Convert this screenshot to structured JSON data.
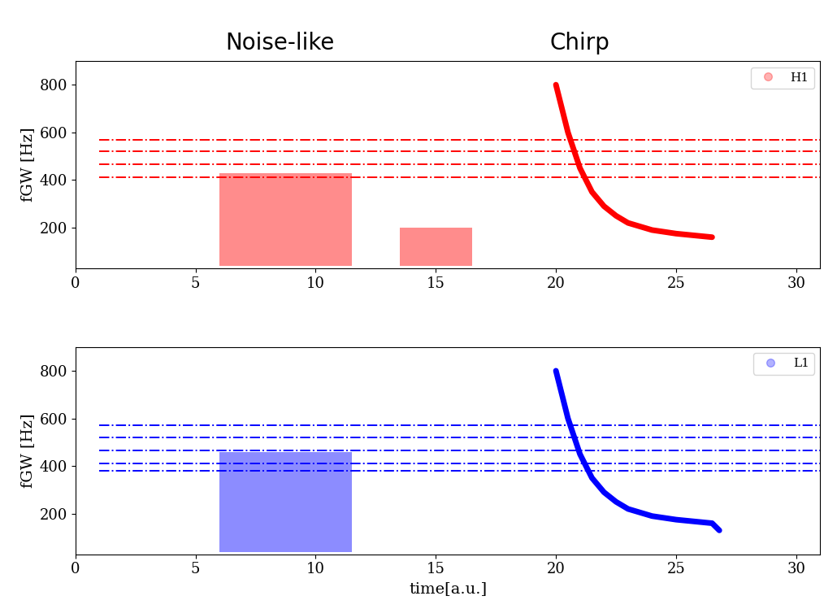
{
  "chart_data": [
    {
      "type": "line",
      "y_label": "fGW [Hz]",
      "annotations": [
        {
          "text": "Noise-like",
          "x": 8.5
        },
        {
          "text": "Chirp",
          "x": 21.0
        }
      ],
      "xlim": [
        0,
        31
      ],
      "xticks": [
        0,
        5,
        10,
        15,
        20,
        25,
        30
      ],
      "ylim": [
        30,
        900
      ],
      "yticks": [
        200,
        400,
        600,
        800
      ],
      "legend": "upper right",
      "series": [
        {
          "type": "area",
          "color": "#ff0000",
          "x": [
            6,
            11.5
          ],
          "values": [
            430,
            430
          ],
          "low": [
            40,
            40
          ]
        },
        {
          "type": "area",
          "color": "#ff0000",
          "x": [
            13.5,
            16.5
          ],
          "values": [
            200,
            200
          ],
          "low": [
            40,
            40
          ]
        },
        {
          "type": "line",
          "line_style": "dashdot",
          "color": "#ff0000",
          "x": [
            1,
            31
          ],
          "values": [
            570,
            570
          ]
        },
        {
          "type": "line",
          "line_style": "dashdot",
          "color": "#ff0000",
          "x": [
            1,
            31
          ],
          "values": [
            520,
            520
          ]
        },
        {
          "type": "line",
          "line_style": "dashdot",
          "color": "#ff0000",
          "x": [
            1,
            31
          ],
          "values": [
            465,
            465
          ]
        },
        {
          "type": "line",
          "line_style": "dashdot",
          "color": "#ff0000",
          "x": [
            1,
            31
          ],
          "values": [
            410,
            410
          ]
        },
        {
          "name": "H1",
          "type": "line",
          "marker": "o",
          "color": "#ff0000",
          "x": [
            20.0,
            20.5,
            21.0,
            21.5,
            22.0,
            22.5,
            23.0,
            24.0,
            25.0,
            26.0,
            26.5
          ],
          "values": [
            800,
            600,
            450,
            350,
            290,
            250,
            220,
            190,
            175,
            165,
            160
          ]
        }
      ]
    },
    {
      "type": "line",
      "x_label": "time[a.u.]",
      "y_label": "fGW [Hz]",
      "xlim": [
        0,
        31
      ],
      "xticks": [
        0,
        5,
        10,
        15,
        20,
        25,
        30
      ],
      "ylim": [
        30,
        900
      ],
      "yticks": [
        200,
        400,
        600,
        800
      ],
      "legend": "upper right",
      "series": [
        {
          "type": "area",
          "color": "#0000ff",
          "x": [
            6,
            11.5
          ],
          "values": [
            460,
            460
          ],
          "low": [
            40,
            40
          ]
        },
        {
          "type": "line",
          "line_style": "dashdot",
          "color": "#0000ff",
          "x": [
            1,
            31
          ],
          "values": [
            570,
            570
          ]
        },
        {
          "type": "line",
          "line_style": "dashdot",
          "color": "#0000ff",
          "x": [
            1,
            31
          ],
          "values": [
            520,
            520
          ]
        },
        {
          "type": "line",
          "line_style": "dashdot",
          "color": "#0000ff",
          "x": [
            1,
            31
          ],
          "values": [
            465,
            465
          ]
        },
        {
          "type": "line",
          "line_style": "dashdot",
          "color": "#0000ff",
          "x": [
            1,
            31
          ],
          "values": [
            410,
            410
          ]
        },
        {
          "type": "line",
          "line_style": "dashdot",
          "color": "#0000ff",
          "x": [
            1,
            31
          ],
          "values": [
            380,
            380
          ]
        },
        {
          "name": "L1",
          "type": "line",
          "marker": "o",
          "color": "#0000ff",
          "x": [
            20.0,
            20.5,
            21.0,
            21.5,
            22.0,
            22.5,
            23.0,
            24.0,
            25.0,
            26.0,
            26.5,
            26.8
          ],
          "values": [
            800,
            600,
            450,
            350,
            290,
            250,
            220,
            190,
            175,
            165,
            160,
            130
          ]
        }
      ]
    }
  ]
}
